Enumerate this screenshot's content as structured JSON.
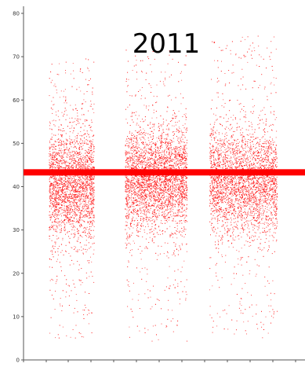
{
  "chart_data": {
    "type": "scatter",
    "title": "2011",
    "xlabel": "",
    "ylabel": "",
    "ylim": [
      0,
      80
    ],
    "y_ticks": [
      "0",
      "10",
      "20",
      "30",
      "40",
      "50",
      "60",
      "70",
      "80"
    ],
    "x_ticks_labeled": false,
    "grid": false,
    "legend": "none",
    "point_color": "#ff0000",
    "reference_line": {
      "y": 43.3,
      "color": "#ff0000"
    },
    "clusters": [
      {
        "x_range": [
          0.09,
          0.25
        ],
        "y_center": 41,
        "y_spread": 6.5,
        "y_range": [
          5,
          70
        ],
        "count": 2600
      },
      {
        "x_range": [
          0.36,
          0.58
        ],
        "y_center": 42,
        "y_spread": 6.0,
        "y_range": [
          4,
          72
        ],
        "count": 3400
      },
      {
        "x_range": [
          0.66,
          0.9
        ],
        "y_center": 41,
        "y_spread": 6.2,
        "y_range": [
          5,
          75
        ],
        "count": 3200
      }
    ]
  }
}
